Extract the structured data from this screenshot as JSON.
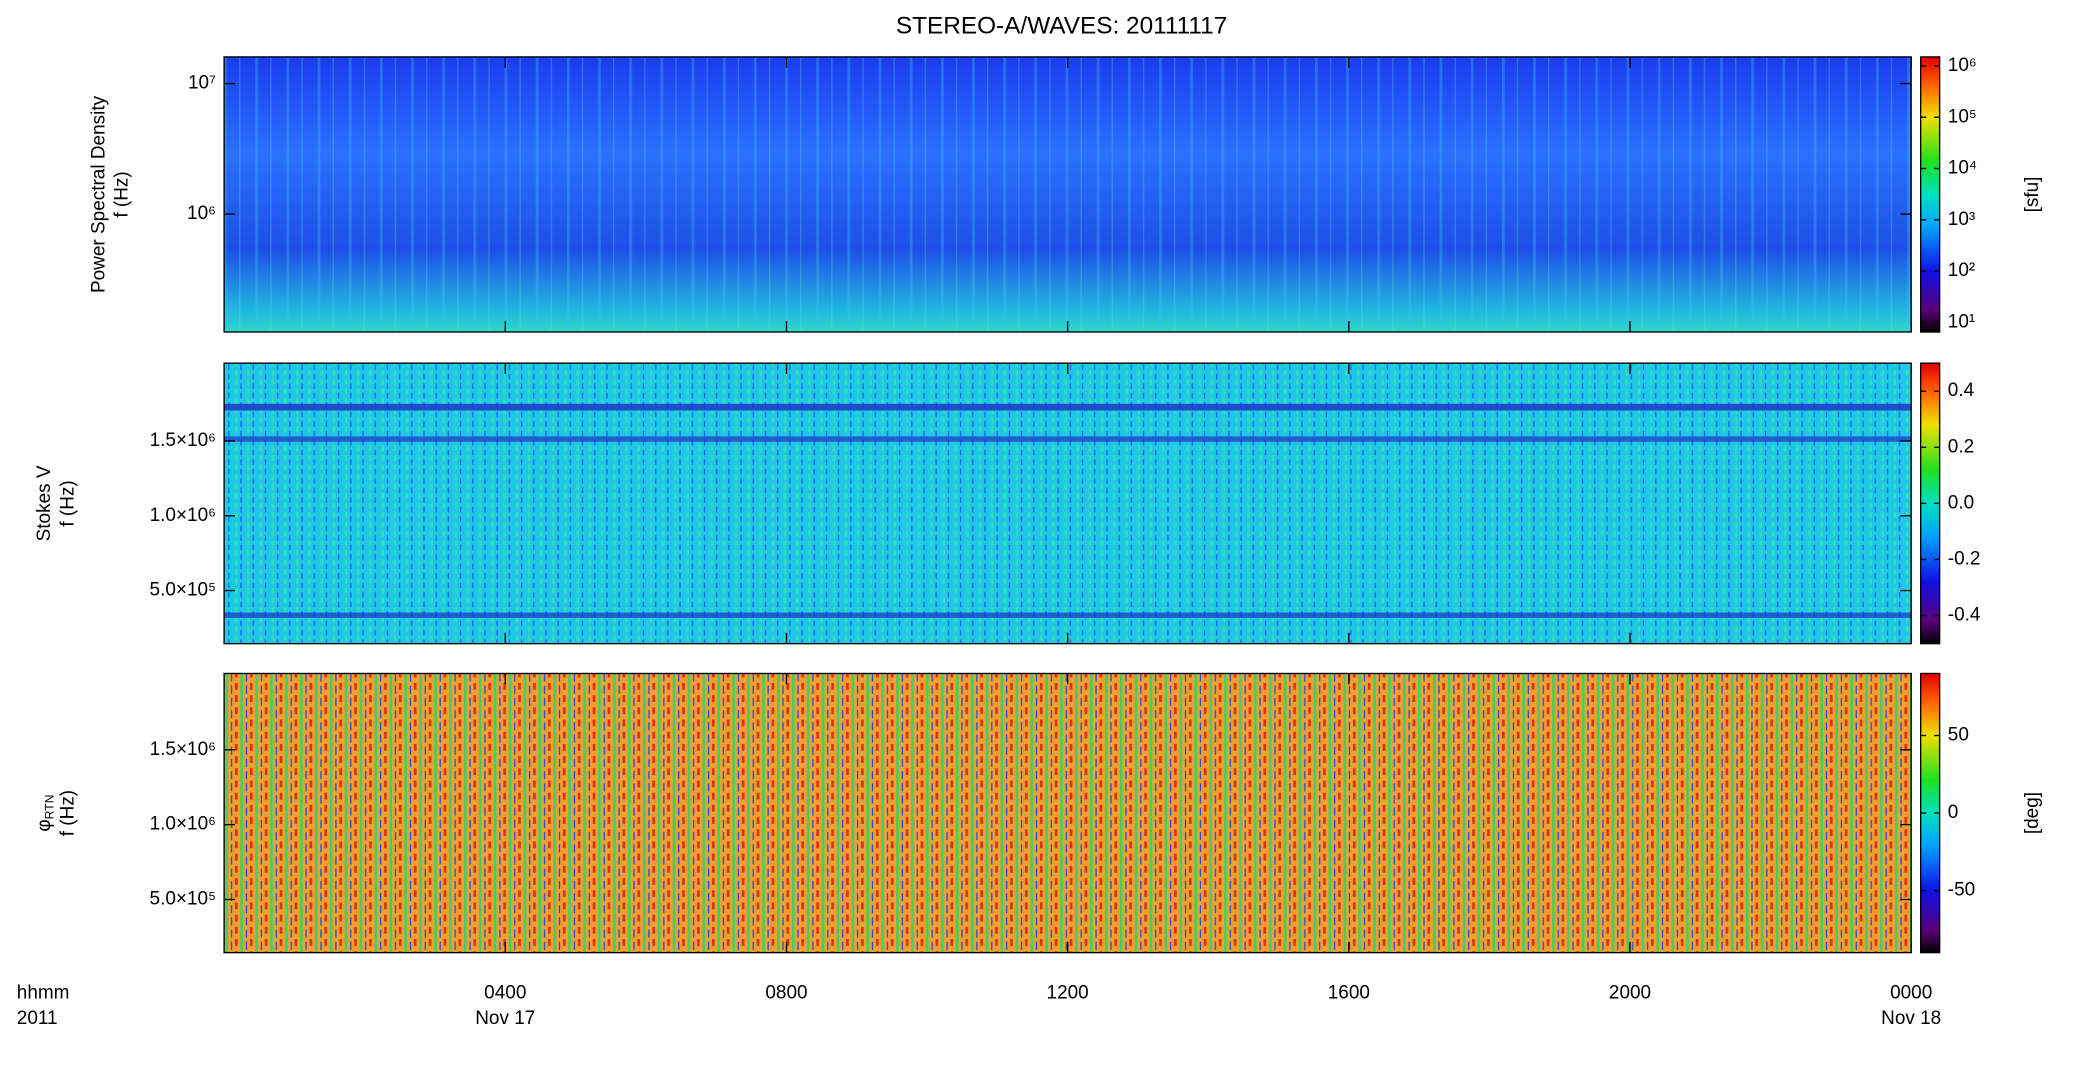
{
  "chart_data": [
    {
      "type": "heatmap",
      "title": "STEREO-A/WAVES: 20111117",
      "ylabel": [
        "Power Spectral Density",
        "f (Hz)"
      ],
      "ylog": true,
      "ylim": [
        125000,
        16000000
      ],
      "yticks": [
        {
          "value": 1000000,
          "label": "10⁶"
        },
        {
          "value": 10000000,
          "label": "10⁷"
        }
      ],
      "colorbar": {
        "log": true,
        "lim": [
          6.5,
          1500000
        ],
        "label": "[sfu]",
        "ticks": [
          {
            "value": 10,
            "label": "10¹"
          },
          {
            "value": 100,
            "label": "10²"
          },
          {
            "value": 1000,
            "label": "10³"
          },
          {
            "value": 10000,
            "label": "10⁴"
          },
          {
            "value": 100000,
            "label": "10⁵"
          },
          {
            "value": 1000000,
            "label": "10⁶"
          }
        ]
      }
    },
    {
      "type": "heatmap",
      "ylabel": [
        "Stokes V",
        "f (Hz)"
      ],
      "ylog": false,
      "ylim": [
        145000,
        2020000
      ],
      "yticks": [
        {
          "value": 500000,
          "label": "5.0×10⁵"
        },
        {
          "value": 1000000,
          "label": "1.0×10⁶"
        },
        {
          "value": 1500000,
          "label": "1.5×10⁶"
        }
      ],
      "colorbar": {
        "log": false,
        "lim": [
          -0.5,
          0.5
        ],
        "ticks": [
          -0.4,
          -0.2,
          {
            "value": 0,
            "label": "0.0"
          },
          0.2,
          0.4
        ]
      }
    },
    {
      "type": "heatmap",
      "ylabel": [
        "φ",
        "f (Hz)"
      ],
      "ylabel_sub": "RTN",
      "ylog": false,
      "ylim": [
        145000,
        2010000
      ],
      "yticks": [
        {
          "value": 500000,
          "label": "5.0×10⁵"
        },
        {
          "value": 1000000,
          "label": "1.0×10⁶"
        },
        {
          "value": 1500000,
          "label": "1.5×10⁶"
        }
      ],
      "colorbar": {
        "log": false,
        "lim": [
          -90,
          90
        ],
        "label": "[deg]",
        "ticks": [
          -50,
          0,
          50
        ]
      },
      "xlabel": [
        "hhmm",
        "2011"
      ],
      "xlim": [
        0,
        24
      ],
      "xticks": [
        {
          "value": 4,
          "label": "0400"
        },
        {
          "value": 8,
          "label": "0800"
        },
        {
          "value": 12,
          "label": "1200"
        },
        {
          "value": 16,
          "label": "1600"
        },
        {
          "value": 20,
          "label": "2000"
        },
        {
          "value": 24,
          "label": "0000"
        }
      ],
      "xtick_dates": [
        {
          "value": 4,
          "label": "Nov 17"
        },
        {
          "value": 24,
          "label": "Nov 18"
        }
      ]
    }
  ]
}
